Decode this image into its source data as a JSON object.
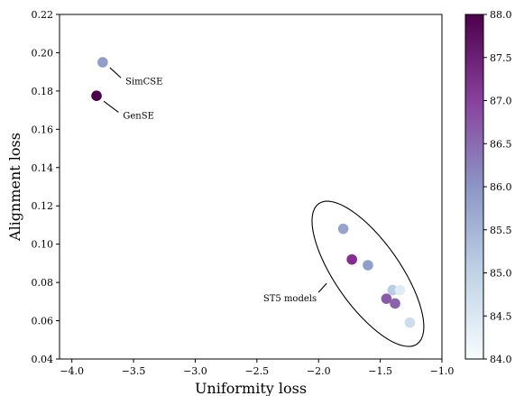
{
  "chart_data": {
    "type": "scatter",
    "xlabel": "Uniformity loss",
    "ylabel": "Alignment loss",
    "xlim": [
      -4.1,
      -1.0
    ],
    "ylim": [
      0.04,
      0.22
    ],
    "xticks": [
      -4.0,
      -3.5,
      -3.0,
      -2.5,
      -2.0,
      -1.5,
      -1.0
    ],
    "xtick_labels": [
      "−4.0",
      "−3.5",
      "−3.0",
      "−2.5",
      "−2.0",
      "−1.5",
      "−1.0"
    ],
    "yticks": [
      0.04,
      0.06,
      0.08,
      0.1,
      0.12,
      0.14,
      0.16,
      0.18,
      0.2,
      0.22
    ],
    "ytick_labels": [
      "0.04",
      "0.06",
      "0.08",
      "0.10",
      "0.12",
      "0.14",
      "0.16",
      "0.18",
      "0.20",
      "0.22"
    ],
    "grid": false,
    "colormap": "BuPu",
    "colorbar": {
      "range": [
        84.0,
        88.0
      ],
      "ticks": [
        84.0,
        84.5,
        85.0,
        85.5,
        86.0,
        86.5,
        87.0,
        87.5,
        88.0
      ],
      "tick_labels": [
        "84.0",
        "84.5",
        "85.0",
        "85.5",
        "86.0",
        "86.5",
        "87.0",
        "87.5",
        "88.0"
      ]
    },
    "points": [
      {
        "x": -3.75,
        "y": 0.195,
        "value": 85.9
      },
      {
        "x": -3.8,
        "y": 0.1775,
        "value": 88.0
      },
      {
        "x": -1.8,
        "y": 0.108,
        "value": 85.8
      },
      {
        "x": -1.73,
        "y": 0.092,
        "value": 87.2
      },
      {
        "x": -1.6,
        "y": 0.089,
        "value": 85.9
      },
      {
        "x": -1.4,
        "y": 0.076,
        "value": 85.1
      },
      {
        "x": -1.34,
        "y": 0.076,
        "value": 84.5
      },
      {
        "x": -1.45,
        "y": 0.0715,
        "value": 86.7
      },
      {
        "x": -1.38,
        "y": 0.069,
        "value": 86.6
      },
      {
        "x": -1.26,
        "y": 0.059,
        "value": 84.8
      }
    ],
    "annotations": [
      {
        "text": "SimCSE",
        "point_x": -3.75,
        "point_y": 0.195,
        "label_x": -3.58,
        "label_y": 0.185
      },
      {
        "text": "GenSE",
        "point_x": -3.8,
        "point_y": 0.1775,
        "label_x": -3.6,
        "label_y": 0.167
      },
      {
        "text": "ST5 models",
        "point_x": -1.92,
        "point_y": 0.08,
        "label_x": -2.03,
        "label_y": 0.0715
      }
    ],
    "ellipse": {
      "cx": -1.6,
      "cy": 0.0845,
      "note": "encloses ST5 models"
    }
  }
}
